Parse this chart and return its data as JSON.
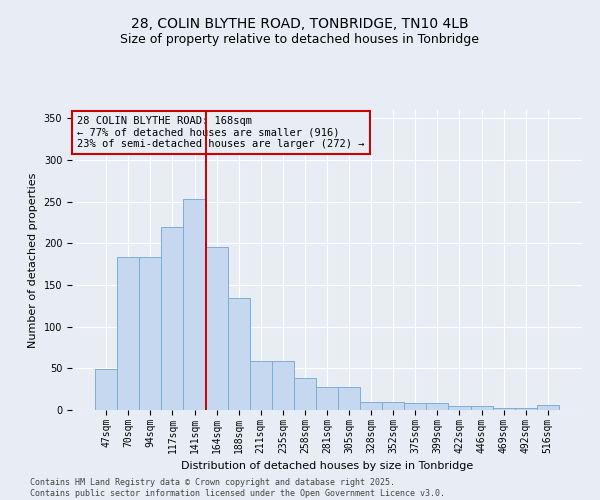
{
  "title": "28, COLIN BLYTHE ROAD, TONBRIDGE, TN10 4LB",
  "subtitle": "Size of property relative to detached houses in Tonbridge",
  "xlabel": "Distribution of detached houses by size in Tonbridge",
  "ylabel": "Number of detached properties",
  "categories": [
    "47sqm",
    "70sqm",
    "94sqm",
    "117sqm",
    "141sqm",
    "164sqm",
    "188sqm",
    "211sqm",
    "235sqm",
    "258sqm",
    "281sqm",
    "305sqm",
    "328sqm",
    "352sqm",
    "375sqm",
    "399sqm",
    "422sqm",
    "446sqm",
    "469sqm",
    "492sqm",
    "516sqm"
  ],
  "values": [
    49,
    184,
    184,
    220,
    253,
    196,
    135,
    59,
    59,
    38,
    28,
    28,
    10,
    10,
    9,
    9,
    5,
    5,
    3,
    2,
    6
  ],
  "bar_color": "#c5d8ef",
  "bar_edge_color": "#7bafd4",
  "vline_x": 4.5,
  "vline_color": "#cc0000",
  "annotation_text": "28 COLIN BLYTHE ROAD: 168sqm\n← 77% of detached houses are smaller (916)\n23% of semi-detached houses are larger (272) →",
  "annotation_box_color": "#cc0000",
  "ylim": [
    0,
    360
  ],
  "yticks": [
    0,
    50,
    100,
    150,
    200,
    250,
    300,
    350
  ],
  "footer": "Contains HM Land Registry data © Crown copyright and database right 2025.\nContains public sector information licensed under the Open Government Licence v3.0.",
  "bg_color": "#e8edf5",
  "title_fontsize": 10,
  "subtitle_fontsize": 9,
  "axis_label_fontsize": 8,
  "tick_fontsize": 7,
  "footer_fontsize": 6,
  "ann_fontsize": 7.5
}
